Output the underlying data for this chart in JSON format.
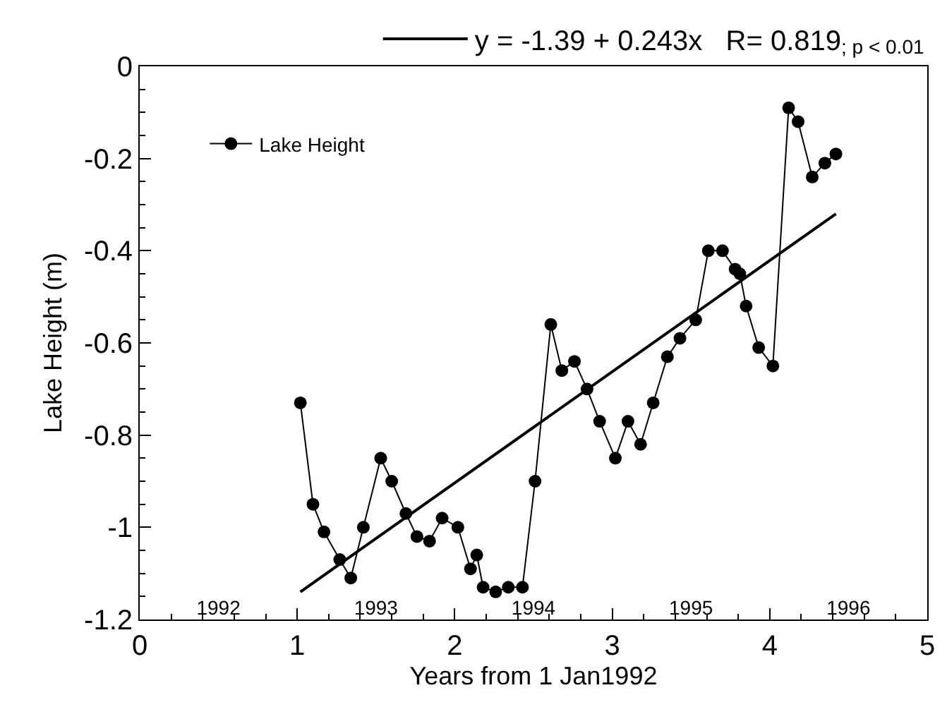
{
  "chart_data": {
    "type": "line",
    "xlabel": "Years from 1 Jan1992",
    "ylabel": "Lake Height (m)",
    "xlim": [
      0,
      5
    ],
    "xticks": [
      0,
      1,
      2,
      3,
      4,
      5
    ],
    "x2lim": [
      1991.5,
      1996.5
    ],
    "x2ticks": [
      1992,
      1993,
      1994,
      1995,
      1996
    ],
    "ylim": [
      -1.2,
      0
    ],
    "yticks": [
      0,
      -0.2,
      -0.4,
      -0.6,
      -0.8,
      {
        "value": -1,
        "label": "-1"
      },
      -1.2
    ],
    "legend": "top left",
    "series": [
      {
        "name": "Lake Height",
        "color": "#000000",
        "marker": "circle",
        "x": [
          1.02,
          1.1,
          1.17,
          1.27,
          1.34,
          1.42,
          1.53,
          1.6,
          1.69,
          1.76,
          1.84,
          1.92,
          2.02,
          2.1,
          2.14,
          2.18,
          2.26,
          2.34,
          2.43,
          2.51,
          2.61,
          2.68,
          2.76,
          2.84,
          2.92,
          3.02,
          3.1,
          3.18,
          3.26,
          3.35,
          3.43,
          3.53,
          3.61,
          3.7,
          3.78,
          3.81,
          3.85,
          3.93,
          4.02,
          4.12,
          4.18,
          4.27,
          4.35,
          4.42
        ],
        "values": [
          -0.73,
          -0.95,
          -1.01,
          -1.07,
          -1.11,
          -1.0,
          -0.85,
          -0.9,
          -0.97,
          -1.02,
          -1.03,
          -0.98,
          -1.0,
          -1.09,
          -1.06,
          -1.13,
          -1.14,
          -1.13,
          -1.13,
          -0.9,
          -0.56,
          -0.66,
          -0.64,
          -0.7,
          -0.77,
          -0.85,
          -0.77,
          -0.82,
          -0.73,
          -0.63,
          -0.59,
          -0.55,
          -0.4,
          -0.4,
          -0.44,
          -0.45,
          -0.52,
          -0.61,
          -0.65,
          -0.09,
          -0.12,
          -0.24,
          -0.21,
          -0.19
        ]
      },
      {
        "name": "y = -1.39 + 0.243x   R= 0.819",
        "color": "#000000",
        "marker": "none",
        "x": [
          1.02,
          4.42
        ],
        "values": [
          -1.14,
          -0.32
        ]
      }
    ],
    "annotations": [
      "; p < 0.01"
    ]
  }
}
